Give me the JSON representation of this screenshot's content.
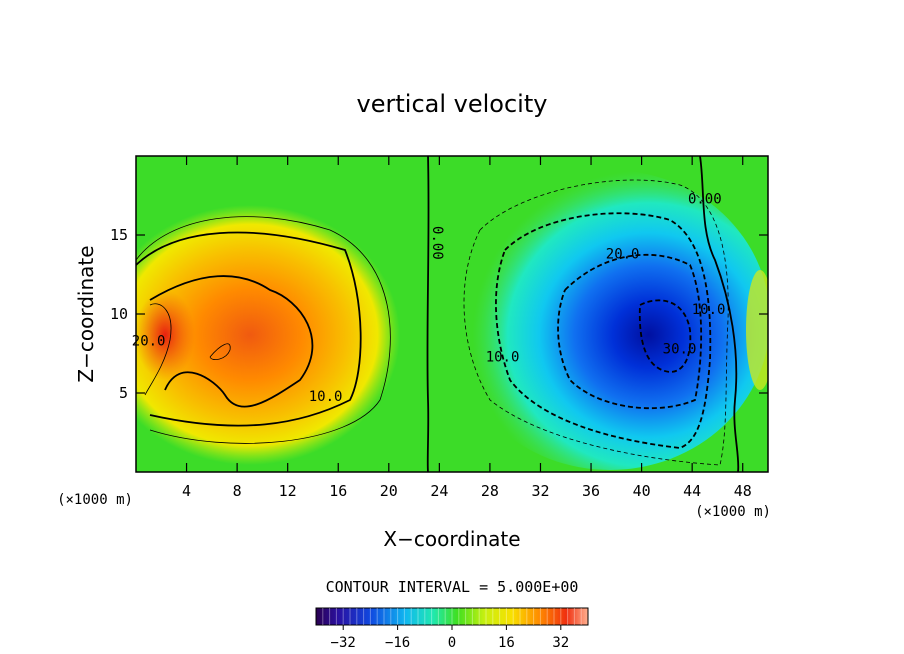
{
  "chart_data": {
    "type": "heatmap",
    "title": "vertical velocity",
    "xlabel": "X−coordinate",
    "ylabel": "Z−coordinate",
    "x_unit_left": "(×1000 m)",
    "x_unit_right": "(×1000 m)",
    "xlim": [
      0,
      50
    ],
    "ylim": [
      0,
      20
    ],
    "x_ticks": [
      4,
      8,
      12,
      16,
      20,
      24,
      28,
      32,
      36,
      40,
      44,
      48
    ],
    "x_tick_labels": [
      "4",
      "8",
      "12",
      "16",
      "20",
      "24",
      "28",
      "32",
      "36",
      "40",
      "44",
      "48"
    ],
    "y_ticks": [
      5,
      10,
      15
    ],
    "y_tick_labels": [
      "5",
      "10",
      "15"
    ],
    "contour_interval_text": "CONTOUR INTERVAL = 5.000E+00",
    "contour_interval": 5.0,
    "colorbar": {
      "range": [
        -40,
        40
      ],
      "ticks": [
        -32,
        -16,
        0,
        16,
        32
      ],
      "tick_labels": [
        "−32",
        "−16",
        "0",
        "16",
        "32"
      ]
    },
    "contour_labels": [
      {
        "text": "10.0",
        "x": 15.0,
        "z": 4.5
      },
      {
        "text": "20.0",
        "x": 1.0,
        "z": 8.0
      },
      {
        "text": "0.00",
        "x": 23.5,
        "z": 14.5
      },
      {
        "text": "10.0",
        "x": 29.0,
        "z": 7.0
      },
      {
        "text": "20.0",
        "x": 38.5,
        "z": 13.5
      },
      {
        "text": "0.00",
        "x": 45.0,
        "z": 17.0
      },
      {
        "text": "10.0",
        "x": 45.3,
        "z": 10.0
      },
      {
        "text": "30.0",
        "x": 43.0,
        "z": 7.5
      }
    ],
    "features": [
      {
        "kind": "updraft",
        "x": 5.5,
        "z": 9.0,
        "peak": 30
      },
      {
        "kind": "downdraft",
        "x": 41.0,
        "z": 9.0,
        "peak": -38
      }
    ]
  }
}
